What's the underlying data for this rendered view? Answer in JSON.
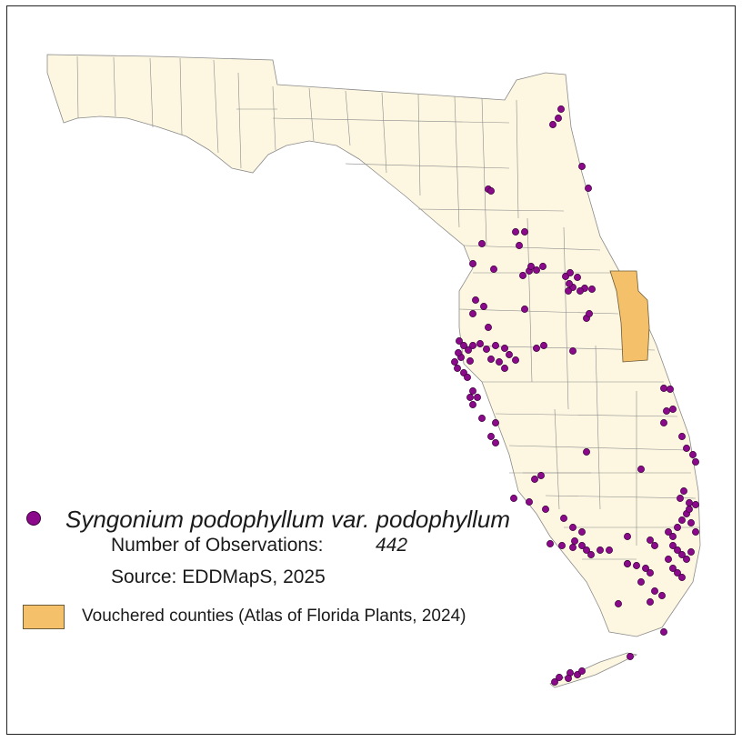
{
  "legend": {
    "species": "Syngonium podophyllum var. podophyllum",
    "observations_label": "Number of Observations:",
    "observations_count": "442",
    "source": "Source: EDDMapS, 2025",
    "vouchered_label": "Vouchered counties (Atlas of Florida Plants, 2024)"
  },
  "colors": {
    "land": "#fdf7e2",
    "county_border": "#8a8a8a",
    "vouchered_county": "#f5c06a",
    "observation_point": "#8b0a8b",
    "frame": "#222222"
  },
  "vouchered_counties_count": 1
}
